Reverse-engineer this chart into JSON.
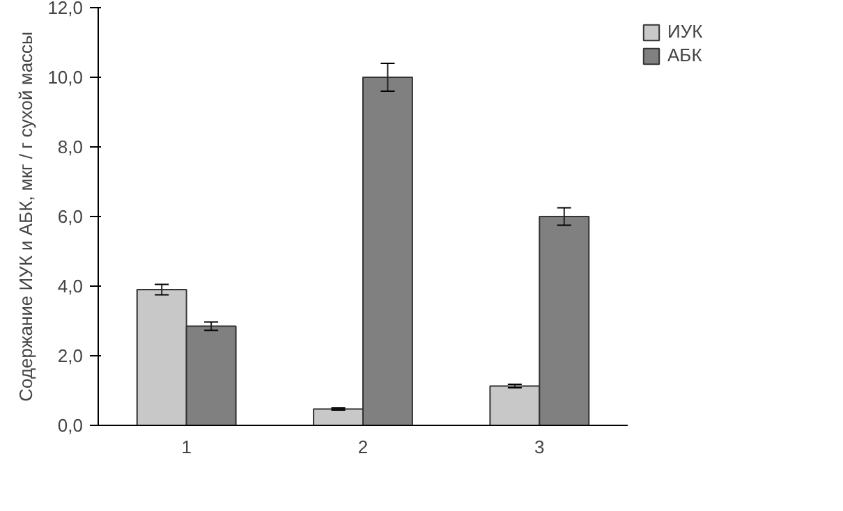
{
  "chart_data": {
    "type": "bar",
    "categories": [
      "1",
      "2",
      "3"
    ],
    "ylabel": "Содержание ИУК и АБК, мкг / г сухой массы",
    "series": [
      {
        "name": "ИУК",
        "color": "#c8c8c8",
        "values": [
          3.9,
          0.47,
          1.13
        ],
        "errors": [
          0.15,
          0.03,
          0.05
        ]
      },
      {
        "name": "АБК",
        "color": "#808080",
        "values": [
          2.85,
          10.0,
          6.0
        ],
        "errors": [
          0.12,
          0.4,
          0.25
        ]
      }
    ],
    "ylim": [
      0,
      12
    ],
    "yticks": [
      {
        "value": 0,
        "label": "0,0"
      },
      {
        "value": 2,
        "label": "2,0"
      },
      {
        "value": 4,
        "label": "4,0"
      },
      {
        "value": 6,
        "label": "6,0"
      },
      {
        "value": 8,
        "label": "8,0"
      },
      {
        "value": 10,
        "label": "10,0"
      },
      {
        "value": 12,
        "label": "12,0"
      }
    ],
    "grid": false,
    "legend": "top right"
  }
}
